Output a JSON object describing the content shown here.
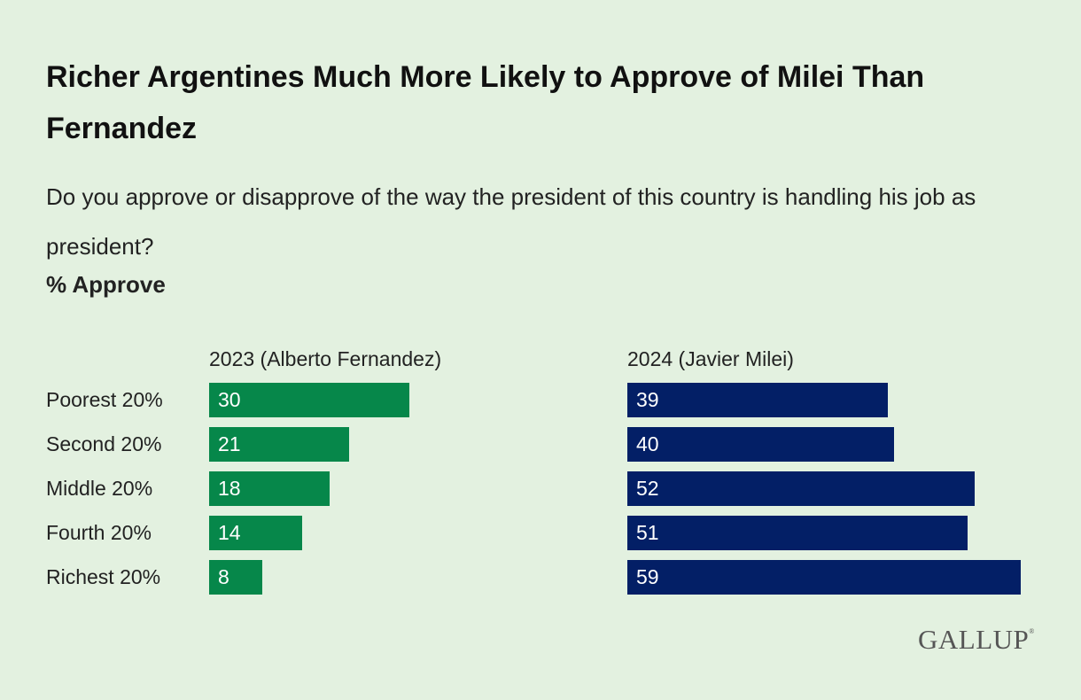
{
  "chart_data": {
    "type": "bar",
    "title": "Richer Argentines Much More Likely to Approve of Milei Than Fernandez",
    "subtitle": "Do you approve or disapprove of the way the president of this country is handling his job as president?",
    "measure": "% Approve",
    "categories": [
      "Poorest 20%",
      "Second 20%",
      "Middle 20%",
      "Fourth 20%",
      "Richest 20%"
    ],
    "series": [
      {
        "name": "2023 (Alberto Fernandez)",
        "values": [
          30,
          21,
          18,
          14,
          8
        ],
        "color": "#06874a"
      },
      {
        "name": "2024 (Javier Milei)",
        "values": [
          39,
          40,
          52,
          51,
          59
        ],
        "color": "#031f66"
      }
    ],
    "xlabel": "",
    "ylabel": "",
    "grid": false
  },
  "source_logo": "GALLUP"
}
